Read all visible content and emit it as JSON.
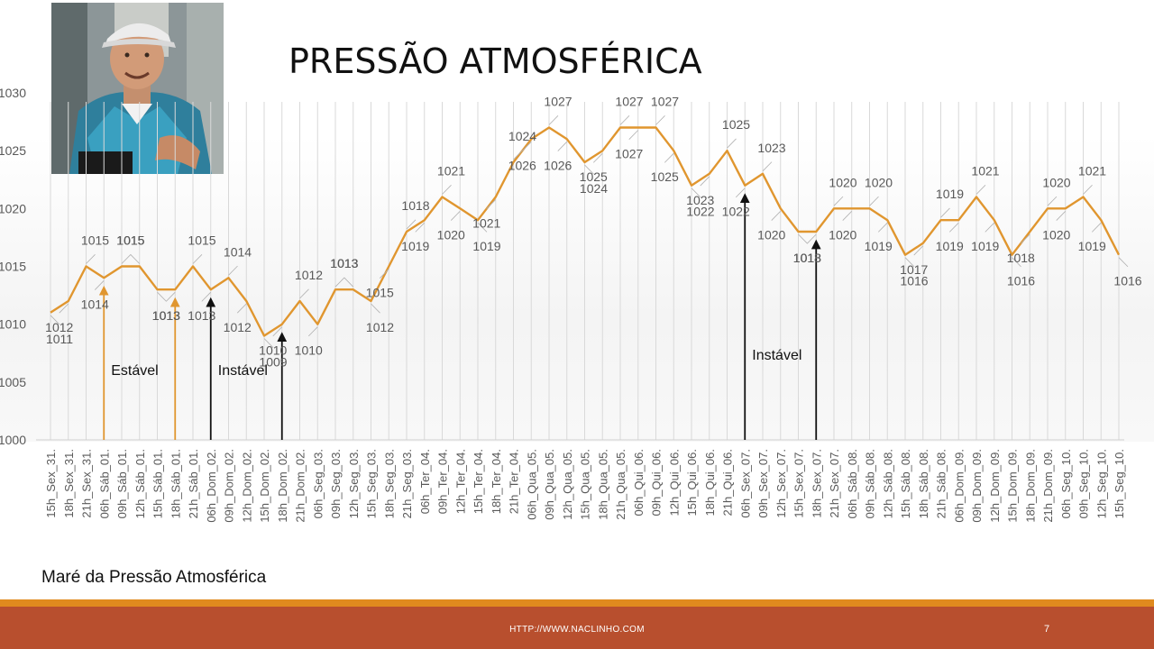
{
  "title": "PRESSÃO ATMOSFÉRICA",
  "subtitle": "Maré da Pressão Atmosférica",
  "footer": {
    "url": "HTTP://WWW.NACLINHO.COM",
    "page": "7"
  },
  "colors": {
    "line": "#e0962f",
    "grid": "#d9d9d9",
    "footer": "#b84f2e",
    "stripe": "#e08a1e",
    "text": "#595959"
  },
  "chart_data": {
    "type": "line",
    "title": "",
    "xlabel": "",
    "ylabel": "",
    "ylim": [
      1000,
      1030
    ],
    "yticks": [
      1000,
      1005,
      1010,
      1015,
      1020,
      1025,
      1030
    ],
    "grid": "vertical",
    "categories": [
      "15h_Sex_31.",
      "18h_Sex_31.",
      "21h_Sex_31.",
      "06h_Sáb_01.",
      "09h_Sáb_01.",
      "12h_Sáb_01.",
      "15h_Sáb_01.",
      "18h_Sáb_01.",
      "21h_Sáb_01.",
      "06h_Dom_02.",
      "09h_Dom_02.",
      "12h_Dom_02.",
      "15h_Dom_02.",
      "18h_Dom_02.",
      "21h_Dom_02.",
      "06h_Seg_03.",
      "09h_Seg_03.",
      "12h_Seg_03.",
      "15h_Seg_03.",
      "18h_Seg_03.",
      "21h_Seg_03.",
      "06h_Ter_04.",
      "09h_Ter_04.",
      "12h_Ter_04.",
      "15h_Ter_04.",
      "18h_Ter_04.",
      "21h_Ter_04.",
      "06h_Qua_05.",
      "09h_Qua_05.",
      "12h_Qua_05.",
      "15h_Qua_05.",
      "18h_Qua_05.",
      "21h_Qua_05.",
      "06h_Qui_06.",
      "09h_Qui_06.",
      "12h_Qui_06.",
      "15h_Qui_06.",
      "18h_Qui_06.",
      "21h_Qui_06.",
      "06h_Sex_07.",
      "09h_Sex_07.",
      "12h_Sex_07.",
      "15h_Sex_07.",
      "18h_Sex_07.",
      "21h_Sex_07.",
      "06h_Sáb_08.",
      "09h_Sáb_08.",
      "12h_Sáb_08.",
      "15h_Sáb_08.",
      "18h_Sáb_08.",
      "21h_Sáb_08.",
      "06h_Dom_09.",
      "09h_Dom_09.",
      "12h_Dom_09.",
      "15h_Dom_09.",
      "18h_Dom_09.",
      "21h_Dom_09.",
      "06h_Seg_10.",
      "09h_Seg_10.",
      "12h_Seg_10.",
      "15h_Seg_10."
    ],
    "series": [
      {
        "values": [
          1011,
          1012,
          1015,
          1014,
          1015,
          1015,
          1013,
          1013,
          1015,
          1013,
          1014,
          1012,
          1009,
          1010,
          1012,
          1010,
          1013,
          1013,
          1012,
          1015,
          1018,
          1019,
          1021,
          1020,
          1019,
          1021,
          1024,
          1026,
          1027,
          1026,
          1024,
          1025,
          1027,
          1027,
          1027,
          1025,
          1022,
          1023,
          1025,
          1022,
          1023,
          1020,
          1018,
          1018,
          1020,
          1020,
          1020,
          1019,
          1016,
          1017,
          1019,
          1019,
          1021,
          1019,
          1016,
          1018,
          1020,
          1020,
          1021,
          1019,
          1016
        ]
      }
    ],
    "annotations": [
      {
        "text": "Estável",
        "at_category": "06h_Sáb_01.",
        "color": "#e0962f"
      },
      {
        "text": "",
        "at_category": "18h_Sáb_01.",
        "color": "#e0962f"
      },
      {
        "text": "Instável",
        "at_category": "06h_Dom_02.",
        "color": "#111111"
      },
      {
        "text": "",
        "at_category": "18h_Dom_02.",
        "color": "#111111"
      },
      {
        "text": "Instável",
        "at_category": "06h_Sex_07.",
        "color": "#111111"
      },
      {
        "text": "",
        "at_category": "18h_Sex_07.",
        "color": "#111111"
      }
    ]
  }
}
